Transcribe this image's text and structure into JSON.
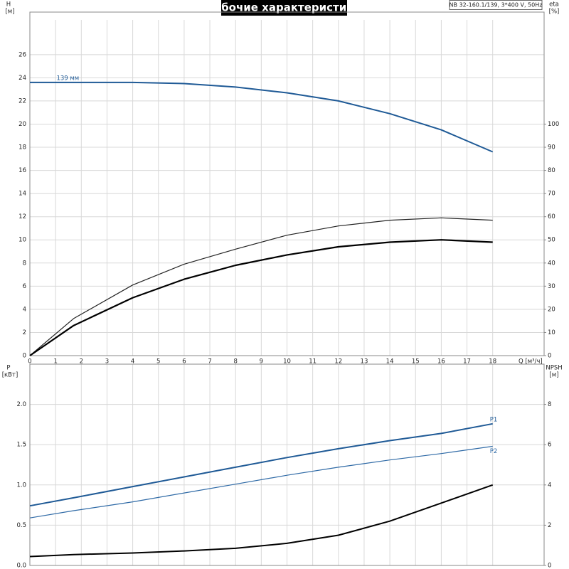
{
  "title": "Рабочие характеристики",
  "model": "NB 32-160.1/139, 3*400 V, 50Hz",
  "chart_data": [
    {
      "type": "line",
      "ylabel": "H",
      "ylabel_unit": "[м]",
      "y2label": "eta",
      "y2label_unit": "[%]",
      "xlabel": "Q [м³/ч]",
      "x": [
        0,
        1.7,
        4,
        6,
        8,
        10,
        12,
        14,
        16,
        18
      ],
      "xlim": [
        0,
        20
      ],
      "xticks": [
        0,
        1,
        2,
        3,
        4,
        5,
        6,
        7,
        8,
        9,
        10,
        11,
        12,
        13,
        14,
        15,
        16,
        17,
        18
      ],
      "ylim": [
        0,
        29
      ],
      "yticks": [
        0,
        2,
        4,
        6,
        8,
        10,
        12,
        14,
        16,
        18,
        20,
        22,
        24,
        26
      ],
      "y2lim": [
        0,
        145
      ],
      "y2ticks": [
        0,
        10,
        20,
        30,
        40,
        50,
        60,
        70,
        80,
        90,
        100
      ],
      "grid": true,
      "show_xtick_labels": true,
      "series": [
        {
          "name": "139 мм",
          "color": "#1f5a96",
          "width": 2,
          "values": [
            23.6,
            23.6,
            23.6,
            23.5,
            23.2,
            22.7,
            22.0,
            20.9,
            19.5,
            17.6
          ]
        },
        {
          "color": "#222222",
          "width": 1.2,
          "axis": "y2",
          "values": [
            0,
            16,
            30.5,
            39.5,
            46,
            52,
            56,
            58.5,
            59.5,
            58.5
          ]
        },
        {
          "color": "#000000",
          "width": 2.2,
          "axis": "y2",
          "values": [
            0,
            13,
            25,
            33,
            39,
            43.5,
            47,
            49,
            50,
            49
          ]
        }
      ]
    },
    {
      "type": "line",
      "ylabel": "P",
      "ylabel_unit": "[кВт]",
      "y2label": "NPSH",
      "y2label_unit": "[м]",
      "x": [
        0,
        1.7,
        4,
        6,
        8,
        10,
        12,
        14,
        16,
        18
      ],
      "xlim": [
        0,
        20
      ],
      "xticks": [
        0,
        1,
        2,
        3,
        4,
        5,
        6,
        7,
        8,
        9,
        10,
        11,
        12,
        13,
        14,
        15,
        16,
        17,
        18
      ],
      "ylim": [
        0,
        2.5
      ],
      "yticks": [
        {
          "value": 0,
          "label": "0.0"
        },
        0.5,
        {
          "value": 1,
          "label": "1.0"
        },
        1.5,
        {
          "value": 2,
          "label": "2.0"
        }
      ],
      "y2lim": [
        0,
        10
      ],
      "y2ticks": [
        0,
        2,
        4,
        6,
        8
      ],
      "grid": true,
      "show_xtick_labels": false,
      "series": [
        {
          "name": "P1",
          "color": "#1f5a96",
          "width": 2,
          "values": [
            0.74,
            0.84,
            0.98,
            1.1,
            1.22,
            1.34,
            1.45,
            1.55,
            1.64,
            1.76
          ]
        },
        {
          "name": "P2",
          "color": "#2f6aa6",
          "width": 1.2,
          "values": [
            0.59,
            0.68,
            0.79,
            0.9,
            1.01,
            1.12,
            1.22,
            1.31,
            1.39,
            1.48
          ]
        },
        {
          "color": "#000000",
          "width": 2,
          "axis": "y2",
          "values": [
            0.44,
            0.54,
            0.62,
            0.72,
            0.85,
            1.1,
            1.5,
            2.2,
            3.1,
            4.0
          ]
        }
      ]
    }
  ]
}
